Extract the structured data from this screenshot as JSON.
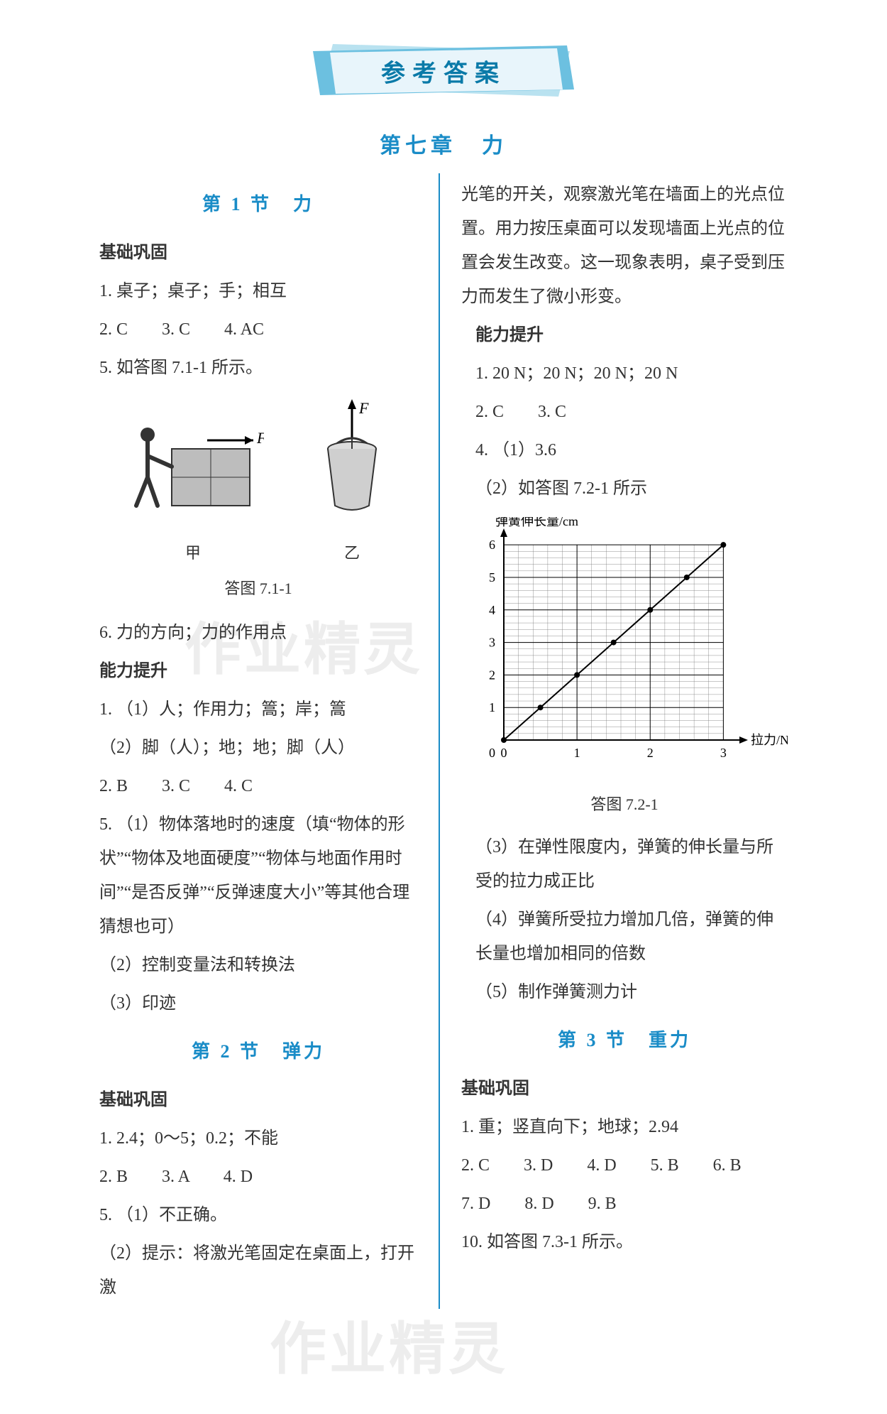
{
  "banner": {
    "title": "参考答案"
  },
  "chapter": {
    "title": "第七章　力"
  },
  "watermark": "作业精灵",
  "colors": {
    "accent": "#1a8cc7",
    "banner_text": "#0a7aa8",
    "banner_fill1": "#b9e2f0",
    "banner_fill2": "#6cc0e0",
    "text": "#333333",
    "divider": "#1a8cc7"
  },
  "left": {
    "sec1": {
      "title": "第 1 节　力",
      "h_basic": "基础巩固",
      "q1": "1. 桌子；桌子；手；相互",
      "q2": "2. C　　3. C　　4. AC",
      "q5": "5. 如答图 7.1-1 所示。",
      "fig": {
        "label_left": "甲",
        "label_right": "乙",
        "caption": "答图 7.1-1",
        "force_label": "F"
      },
      "q6": "6. 力的方向；力的作用点",
      "h_adv": "能力提升",
      "a1": "1. （1）人；作用力；篙；岸；篙",
      "a1b": "（2）脚（人）；地；地；脚（人）",
      "a2": "2. B　　3. C　　4. C",
      "a5a": "5. （1）物体落地时的速度（填“物体的形状”“物体及地面硬度”“物体与地面作用时间”“是否反弹”“反弹速度大小”等其他合理猜想也可）",
      "a5b": "（2）控制变量法和转换法",
      "a5c": "（3）印迹"
    },
    "sec2": {
      "title": "第 2 节　弹力",
      "h_basic": "基础巩固",
      "q1": "1. 2.4；0～5；0.2；不能",
      "q2": "2. B　　3. A　　4. D",
      "q5a": "5. （1）不正确。",
      "q5b": "（2）提示：将激光笔固定在桌面上，打开激"
    }
  },
  "right": {
    "cont": "光笔的开关，观察激光笔在墙面上的光点位置。用力按压桌面可以发现墙面上光点的位置会发生改变。这一现象表明，桌子受到压力而发生了微小形变。",
    "h_adv": "能力提升",
    "q1": "1. 20 N；20 N；20 N；20 N",
    "q2": "2. C　　3. C",
    "q4a": "4. （1）3.6",
    "q4b": "（2）如答图 7.2-1 所示",
    "chart": {
      "y_label": "弹簧伸长量/cm",
      "x_label": "拉力/N",
      "caption": "答图 7.2-1",
      "x_ticks": [
        0,
        1,
        2,
        3
      ],
      "y_ticks": [
        0,
        1,
        2,
        3,
        4,
        5,
        6
      ],
      "xlim": [
        0,
        3.2
      ],
      "ylim": [
        0,
        6.2
      ],
      "series": {
        "type": "line_scatter",
        "points": [
          [
            0,
            0
          ],
          [
            0.5,
            1
          ],
          [
            1,
            2
          ],
          [
            1.5,
            3
          ],
          [
            2,
            4
          ],
          [
            2.5,
            5
          ],
          [
            3,
            6
          ]
        ],
        "line_color": "#000000",
        "marker": "circle",
        "marker_fill": "#000000",
        "marker_radius": 4,
        "line_width": 2
      },
      "grid": {
        "major_color": "#000000",
        "minor_color": "#777777",
        "minor_per_major": 5
      },
      "axis_color": "#000000",
      "font_size": 18
    },
    "q4c": "（3）在弹性限度内，弹簧的伸长量与所受的拉力成正比",
    "q4d": "（4）弹簧所受拉力增加几倍，弹簧的伸长量也增加相同的倍数",
    "q4e": "（5）制作弹簧测力计",
    "sec3": {
      "title": "第 3 节　重力",
      "h_basic": "基础巩固",
      "q1": "1. 重；竖直向下；地球；2.94",
      "q2": "2. C　　3. D　　4. D　　5. B　　6. B",
      "q7": "7. D　　8. D　　9. B",
      "q10": "10. 如答图 7.3-1 所示。"
    }
  }
}
